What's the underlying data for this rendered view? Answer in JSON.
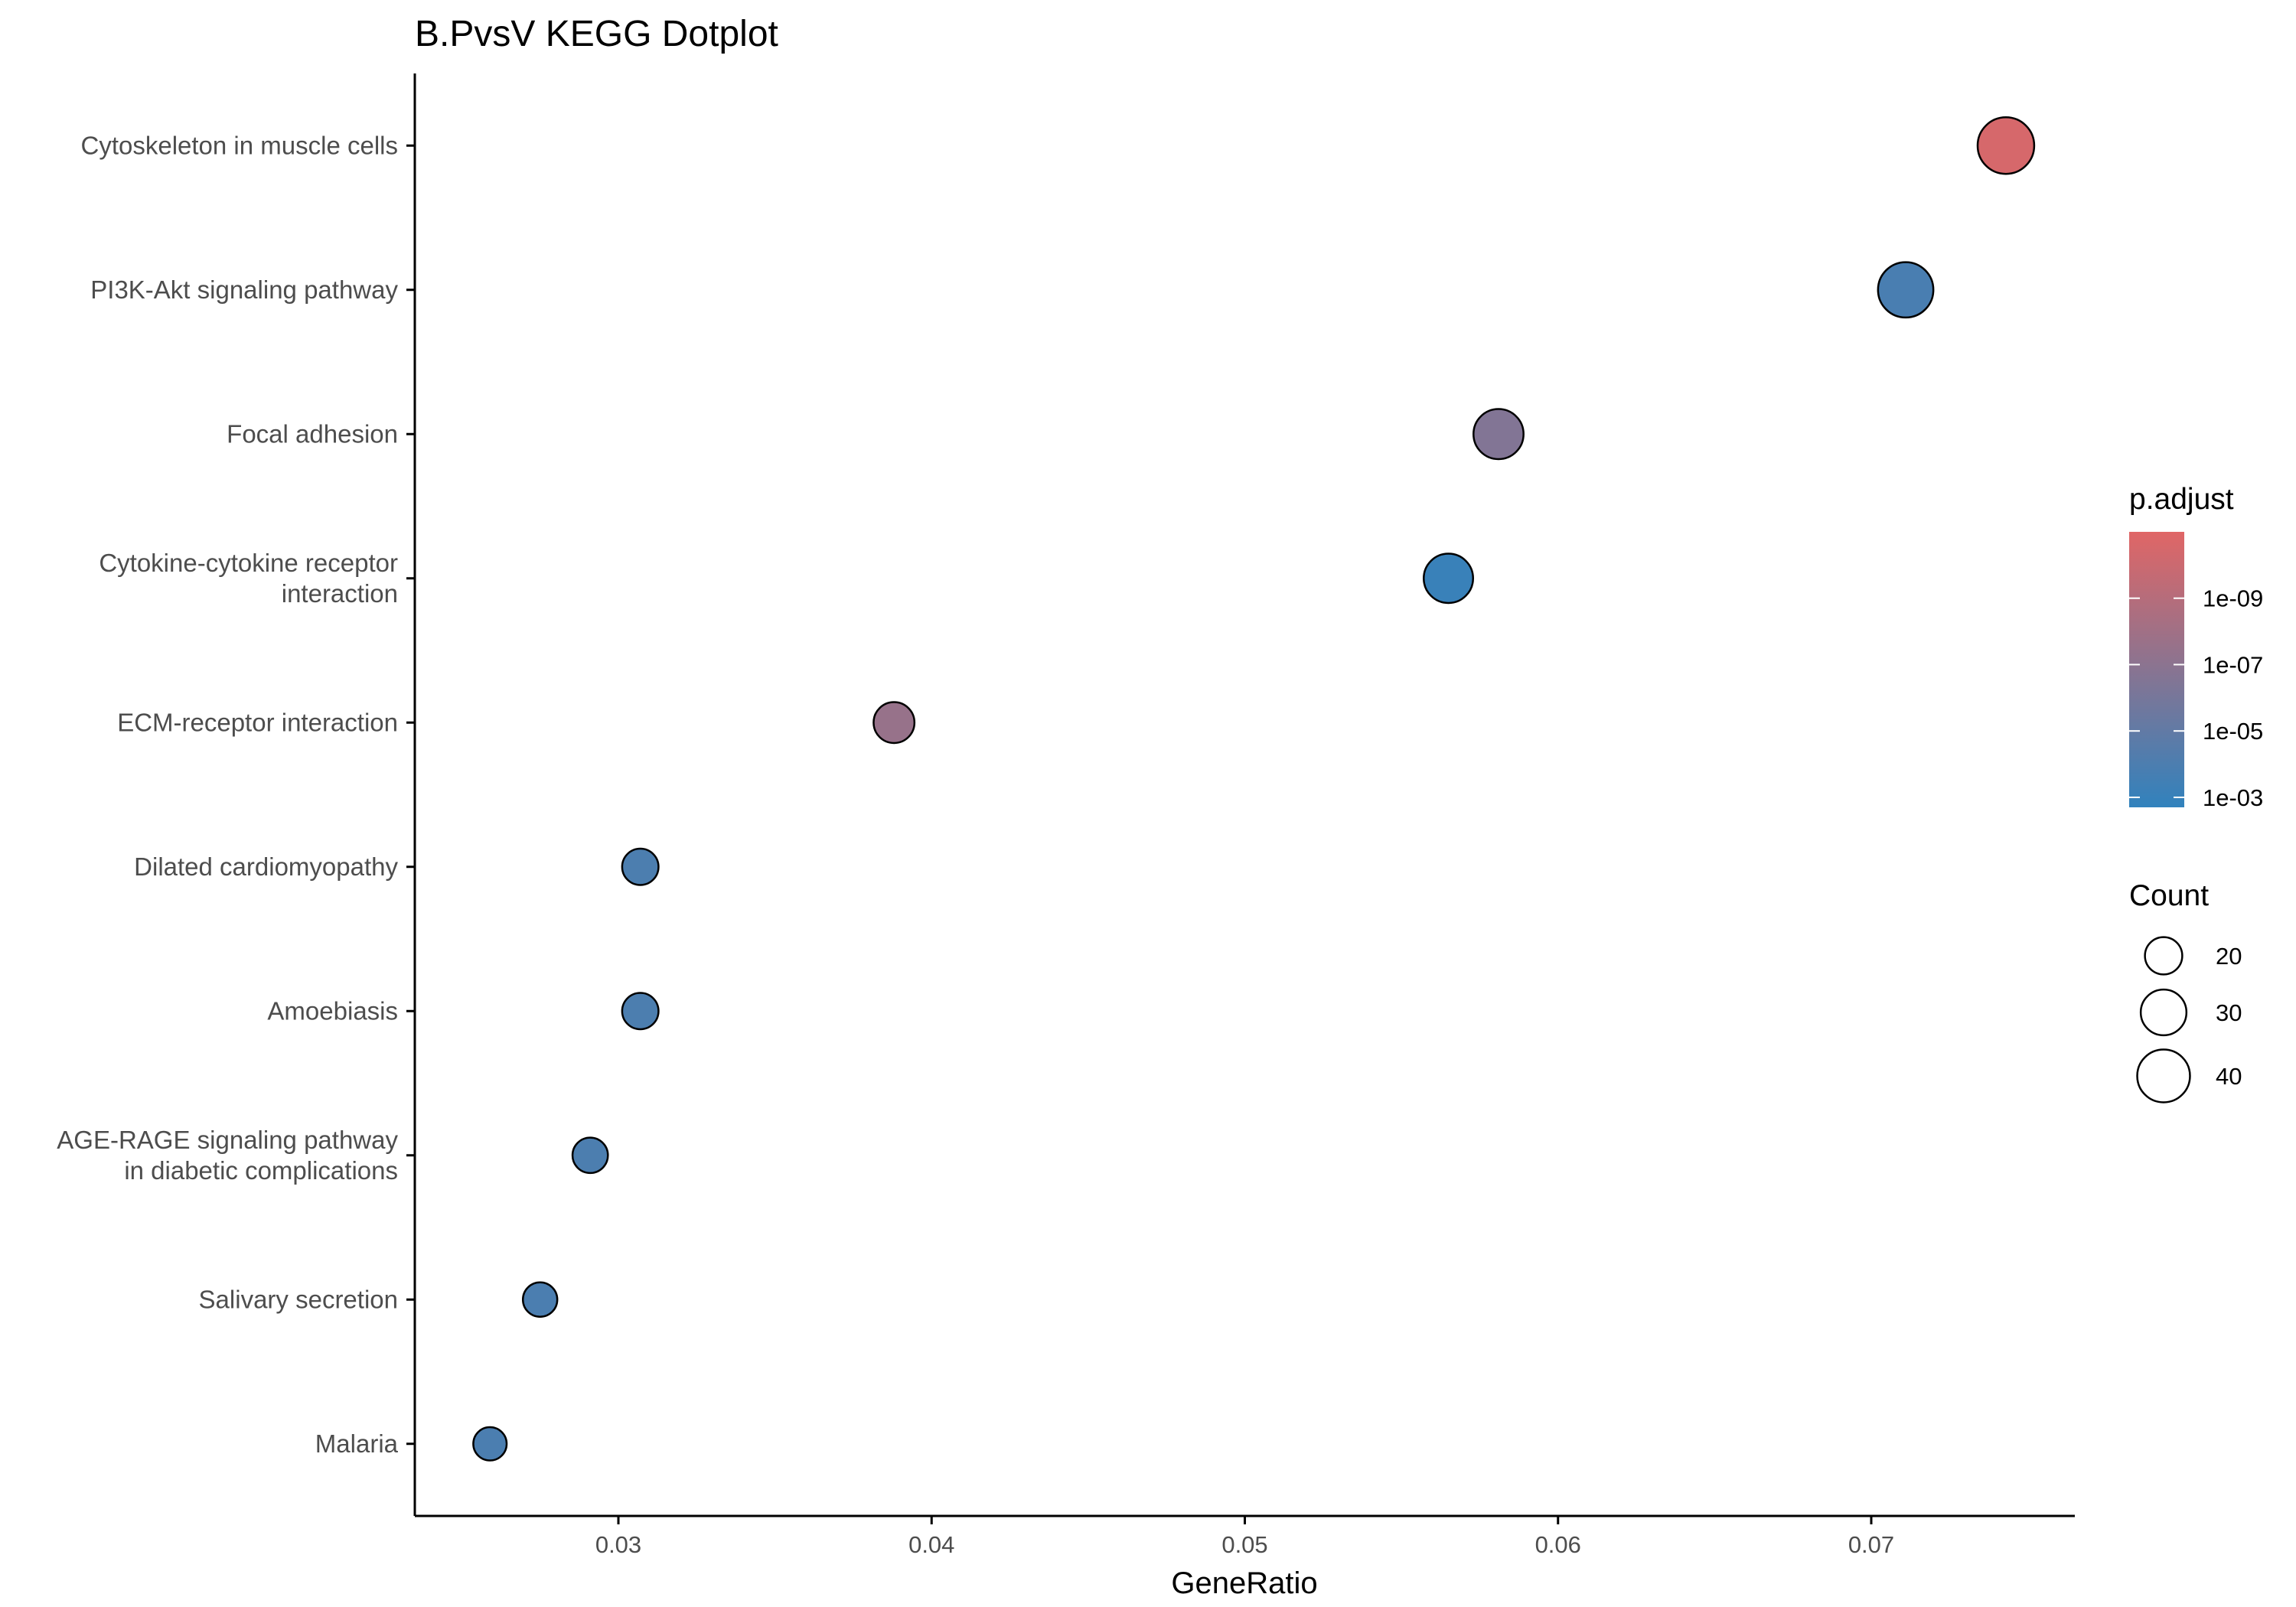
{
  "chart_data": {
    "type": "scatter",
    "title": "B.PvsV KEGG Dotplot",
    "xlabel": "GeneRatio",
    "ylabel": "",
    "xlim": [
      0.0235,
      0.0765
    ],
    "xticks": [
      0.03,
      0.04,
      0.05,
      0.06,
      0.07
    ],
    "xtick_labels": [
      "0.03",
      "0.04",
      "0.05",
      "0.06",
      "0.07"
    ],
    "grid": false,
    "categories": [
      "Cytoskeleton in muscle cells",
      "PI3K-Akt signaling pathway",
      "Focal adhesion",
      "Cytokine-cytokine receptor\ninteraction",
      "ECM-receptor interaction",
      "Dilated cardiomyopathy",
      "Amoebiasis",
      "AGE-RAGE signaling pathway\nin diabetic complications",
      "Salivary secretion",
      "Malaria"
    ],
    "points": [
      {
        "term": "Cytoskeleton in muscle cells",
        "gene_ratio": 0.0743,
        "count": 46,
        "p_adjust": 3e-11
      },
      {
        "term": "PI3K-Akt signaling pathway",
        "gene_ratio": 0.0711,
        "count": 44,
        "p_adjust": 0.00015
      },
      {
        "term": "Focal adhesion",
        "gene_ratio": 0.0581,
        "count": 36,
        "p_adjust": 3e-07
      },
      {
        "term": "Cytokine-cytokine receptor\ninteraction",
        "gene_ratio": 0.0565,
        "count": 35,
        "p_adjust": 0.0008
      },
      {
        "term": "ECM-receptor interaction",
        "gene_ratio": 0.0388,
        "count": 24,
        "p_adjust": 3e-08
      },
      {
        "term": "Dilated cardiomyopathy",
        "gene_ratio": 0.0307,
        "count": 19,
        "p_adjust": 0.0001
      },
      {
        "term": "Amoebiasis",
        "gene_ratio": 0.0307,
        "count": 19,
        "p_adjust": 0.0001
      },
      {
        "term": "AGE-RAGE signaling pathway\nin diabetic complications",
        "gene_ratio": 0.0291,
        "count": 18,
        "p_adjust": 0.0001
      },
      {
        "term": "Salivary secretion",
        "gene_ratio": 0.0275,
        "count": 17,
        "p_adjust": 0.00012
      },
      {
        "term": "Malaria",
        "gene_ratio": 0.0259,
        "count": 16,
        "p_adjust": 0.00012
      }
    ],
    "color_legend": {
      "title": "p.adjust",
      "scale": "log",
      "low_color": "#3182BD",
      "high_color": "#E06666",
      "range": [
        1e-11,
        0.002
      ],
      "ticks": [
        1e-09,
        1e-07,
        1e-05,
        0.001
      ],
      "tick_labels": [
        "1e-09",
        "1e-07",
        "1e-05",
        "1e-03"
      ],
      "placement": "right"
    },
    "size_legend": {
      "title": "Count",
      "values": [
        20,
        30,
        40
      ],
      "labels": [
        "20",
        "30",
        "40"
      ],
      "placement": "right"
    }
  }
}
